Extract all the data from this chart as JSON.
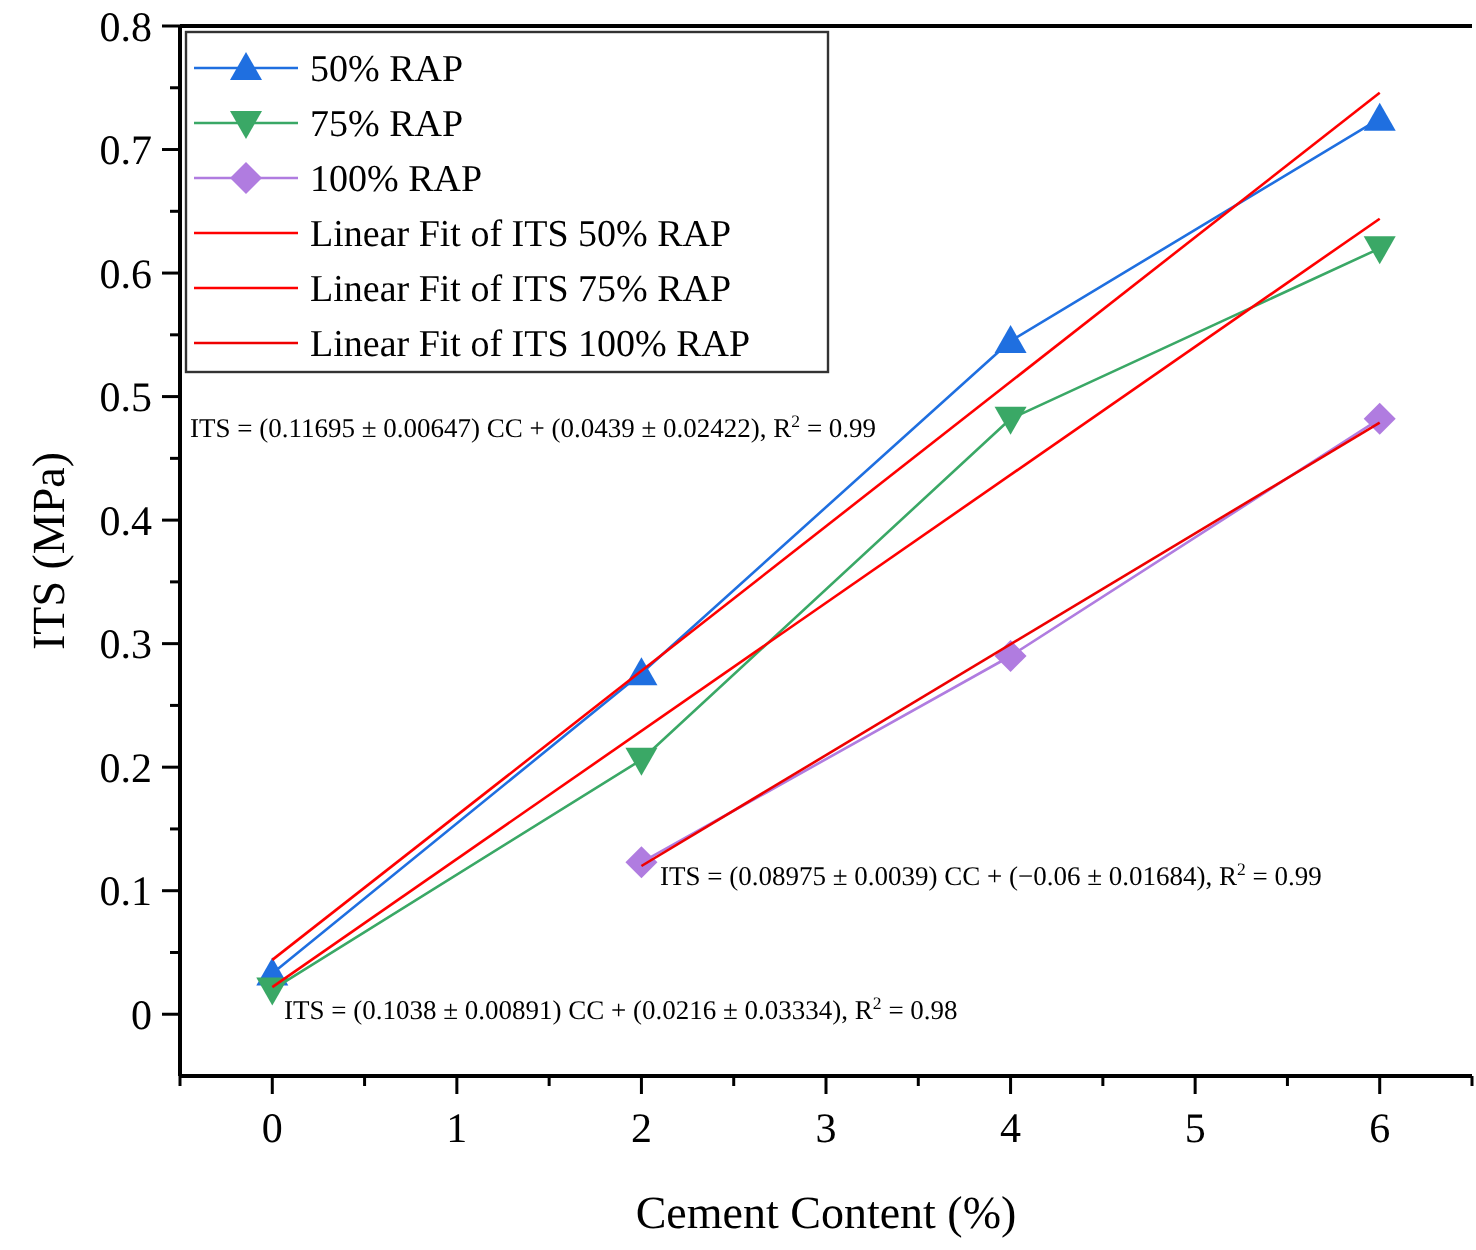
{
  "chart_data": {
    "type": "line",
    "xlabel": "Cement Content (%)",
    "ylabel": "ITS (MPa)",
    "xlim": [
      -0.5,
      6.5
    ],
    "xticks": [
      {
        "value": -0.5,
        "label": null
      },
      0,
      {
        "value": 0.5,
        "label": null
      },
      1,
      {
        "value": 1.5,
        "label": null
      },
      2,
      {
        "value": 2.5,
        "label": null
      },
      3,
      {
        "value": 3.5,
        "label": null
      },
      4,
      {
        "value": 4.5,
        "label": null
      },
      5,
      {
        "value": 5.5,
        "label": null
      },
      6,
      {
        "value": 6.5,
        "label": null
      }
    ],
    "ylim": [
      -0.05,
      0.8
    ],
    "yticks": [
      0,
      {
        "value": 0.05,
        "label": null
      },
      0.1,
      {
        "value": 0.15,
        "label": null
      },
      0.2,
      {
        "value": 0.25,
        "label": null
      },
      0.3,
      {
        "value": 0.35,
        "label": null
      },
      0.4,
      {
        "value": 0.45,
        "label": null
      },
      0.5,
      {
        "value": 0.55,
        "label": null
      },
      0.6,
      {
        "value": 0.65,
        "label": null
      },
      0.7,
      {
        "value": 0.75,
        "label": null
      },
      0.8
    ],
    "grid": false,
    "legend": "top left",
    "series": [
      {
        "name": "50% RAP",
        "color": "#1f6fe0",
        "marker": "triangle",
        "x": [
          0,
          2,
          4,
          6
        ],
        "values": [
          0.033,
          0.276,
          0.545,
          0.725
        ]
      },
      {
        "name": "75% RAP",
        "color": "#3aa866",
        "marker": "triangle-down",
        "x": [
          0,
          2,
          4,
          6
        ],
        "values": [
          0.02,
          0.206,
          0.482,
          0.62
        ]
      },
      {
        "name": "100% RAP",
        "color": "#b07ce0",
        "marker": "diamond",
        "x": [
          2,
          4,
          6
        ],
        "values": [
          0.123,
          0.29,
          0.482
        ]
      },
      {
        "name": "Linear Fit of ITS 50% RAP",
        "color": "#ff0000",
        "marker": "none",
        "x": [
          0,
          6
        ],
        "values": [
          0.044,
          0.746
        ]
      },
      {
        "name": "Linear Fit of ITS 75% RAP",
        "color": "#ff0000",
        "marker": "none",
        "x": [
          0,
          6
        ],
        "values": [
          0.022,
          0.644
        ]
      },
      {
        "name": "Linear Fit of ITS 100% RAP",
        "color": "#ee0000",
        "marker": "none",
        "x": [
          2,
          6
        ],
        "values": [
          0.12,
          0.479
        ]
      }
    ],
    "annotations": [
      "ITS = (0.11695 ± 0.00647) CC + (0.0439 ± 0.02422), R$^{2}$ = 0.99",
      "ITS = (0.08975 ± 0.0039) CC + (−0.06 ± 0.01684), R$^{2}$ = 0.99",
      "ITS = (0.1038 ± 0.00891) CC + (0.0216 ± 0.03334), R$^{2}$ = 0.98"
    ]
  }
}
